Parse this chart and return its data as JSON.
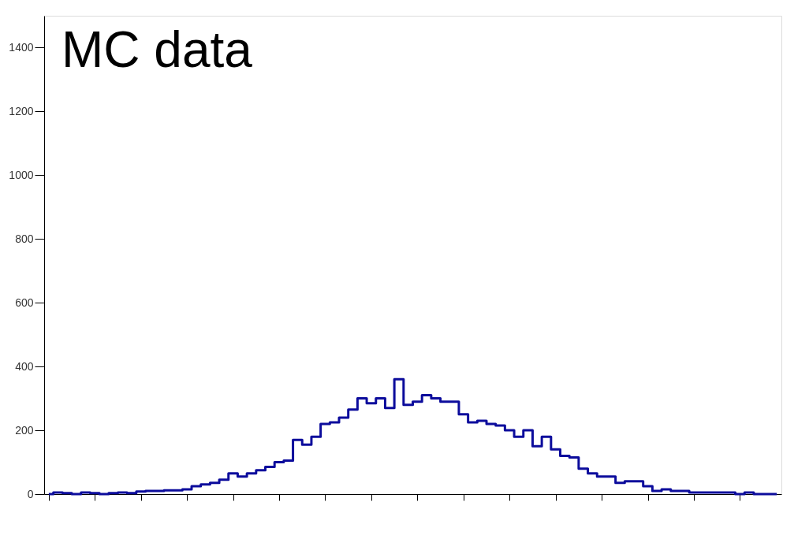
{
  "chart_data": {
    "type": "step",
    "categories": [
      null,
      null,
      null,
      null,
      null,
      null,
      null,
      null,
      null,
      null,
      null,
      null,
      null,
      null,
      null,
      null,
      null,
      null,
      null,
      null,
      null,
      null,
      null,
      null,
      null,
      null,
      null,
      null,
      null,
      null,
      null,
      null,
      null,
      null,
      null,
      null,
      null,
      null,
      null,
      null,
      null,
      null,
      null,
      null,
      null,
      null,
      null,
      null,
      null,
      null,
      null,
      null,
      null,
      null,
      null,
      null,
      null,
      null,
      null,
      null,
      null,
      null,
      null,
      null,
      null,
      null,
      null,
      null,
      null,
      null,
      null,
      null,
      null,
      null,
      null,
      null,
      null,
      null,
      null,
      null
    ],
    "series": [
      {
        "color": "#0c0c9c",
        "values": [
          0,
          5,
          3,
          0,
          5,
          3,
          0,
          3,
          5,
          3,
          8,
          10,
          10,
          12,
          12,
          15,
          25,
          30,
          35,
          45,
          65,
          55,
          65,
          75,
          85,
          100,
          105,
          170,
          155,
          180,
          220,
          225,
          240,
          265,
          300,
          285,
          300,
          270,
          360,
          280,
          290,
          310,
          300,
          290,
          290,
          250,
          225,
          230,
          220,
          215,
          200,
          180,
          200,
          150,
          180,
          140,
          120,
          115,
          80,
          65,
          55,
          55,
          35,
          40,
          40,
          25,
          10,
          15,
          10,
          10,
          5,
          5,
          5,
          5,
          5,
          0,
          5,
          0,
          0,
          0
        ]
      }
    ],
    "ylim": [
      0,
      1500
    ],
    "yticks": [
      0,
      200,
      400,
      600,
      800,
      1000,
      1200,
      1400
    ],
    "tick_labels": "y",
    "grid": false,
    "legend": false,
    "annotations": [
      "MC data"
    ]
  }
}
